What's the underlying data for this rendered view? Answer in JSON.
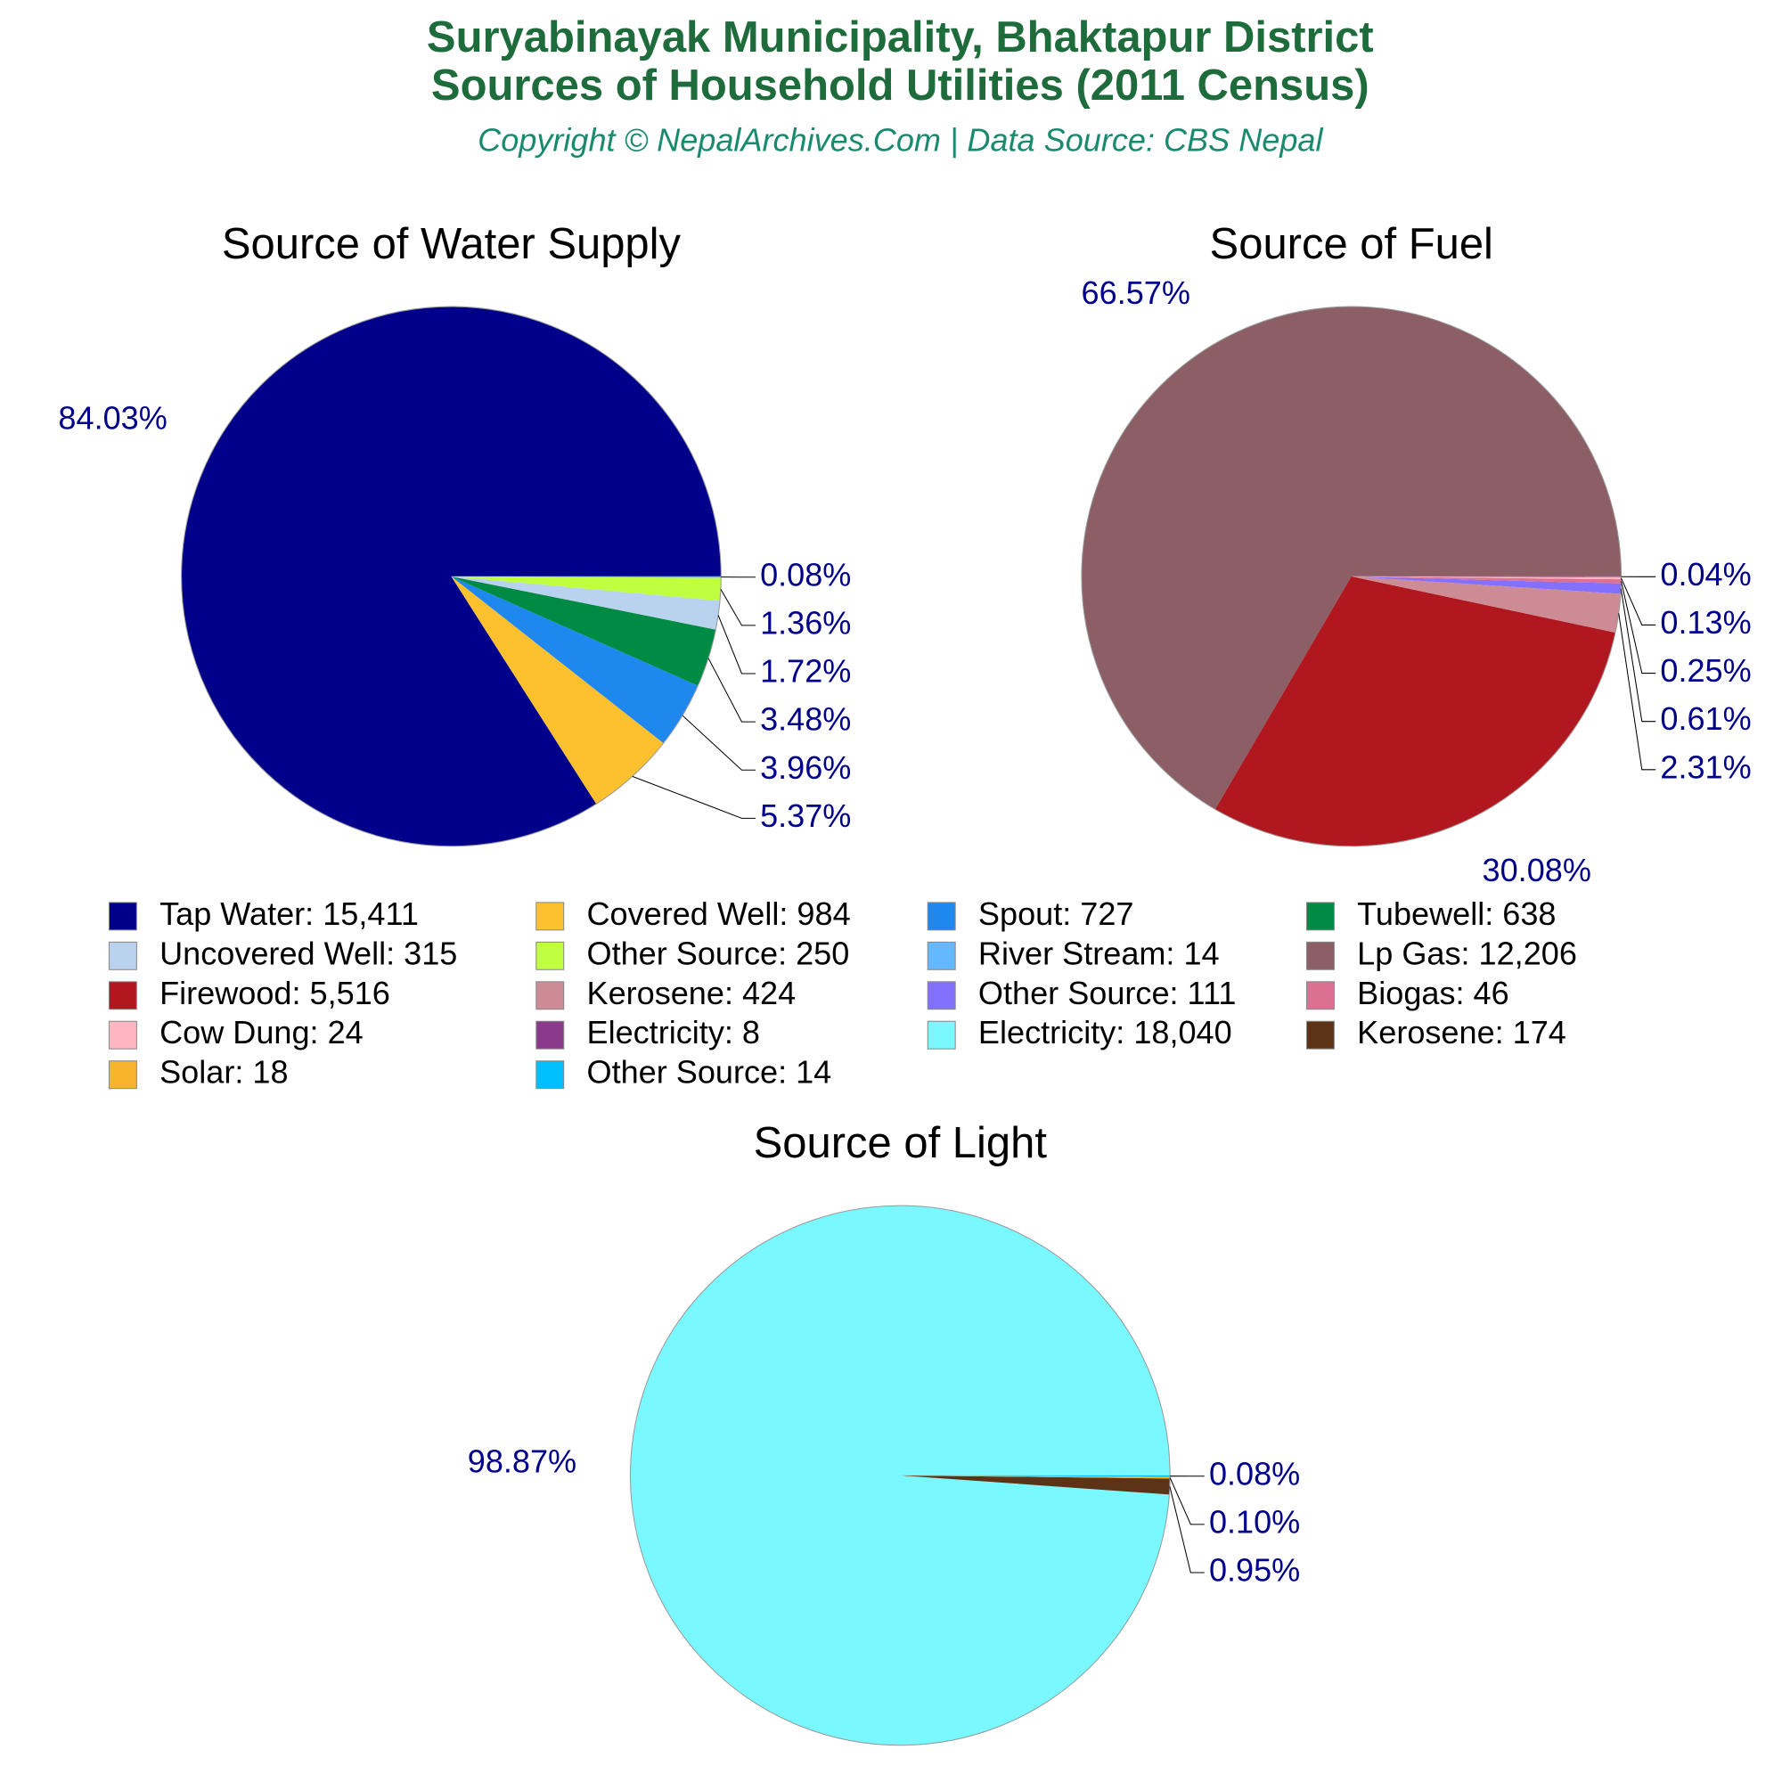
{
  "header": {
    "title": [
      "Suryabinayak Municipality, Bhaktapur District",
      "Sources of Household Utilities (2011 Census)"
    ],
    "subtitle": "Copyright © NepalArchives.Com | Data Source: CBS Nepal"
  },
  "chart_data": [
    {
      "type": "pie",
      "title": "Source of Water Supply",
      "categories": [
        "Tap Water: 15,411",
        "Covered Well: 984",
        "Spout: 727",
        "Tubewell: 638",
        "Uncovered Well: 315",
        "Other Source: 250",
        "River Stream: 14"
      ],
      "values": [
        84.03,
        5.37,
        3.96,
        3.48,
        1.72,
        1.36,
        0.08
      ],
      "value_labels": [
        "84.03%",
        "5.37%",
        "3.96%",
        "3.48%",
        "1.72%",
        "1.36%",
        "0.08%"
      ],
      "colors": [
        "#00008b",
        "#fdc02f",
        "#1e88ee",
        "#008b45",
        "#b9d3ee",
        "#c0ff3e",
        "#63b8ff"
      ]
    },
    {
      "type": "pie",
      "title": "Source of Fuel",
      "categories": [
        "Lp Gas: 12,206",
        "Firewood: 5,516",
        "Kerosene: 424",
        "Other Source: 111",
        "Biogas: 46",
        "Cow Dung: 24",
        "Electricity: 8"
      ],
      "values": [
        66.57,
        30.08,
        2.31,
        0.61,
        0.25,
        0.13,
        0.04
      ],
      "value_labels": [
        "66.57%",
        "30.08%",
        "2.31%",
        "0.61%",
        "0.25%",
        "0.13%",
        "0.04%"
      ],
      "colors": [
        "#8b5f65",
        "#b0171f",
        "#cd8c95",
        "#8470ff",
        "#db7093",
        "#ffb6c1",
        "#8b3a8b"
      ]
    },
    {
      "type": "pie",
      "title": "Source of Light",
      "categories": [
        "Electricity: 18,040",
        "Kerosene: 174",
        "Solar: 18",
        "Other Source: 14"
      ],
      "values": [
        98.87,
        0.95,
        0.1,
        0.08
      ],
      "value_labels": [
        "98.87%",
        "0.95%",
        "0.10%",
        "0.08%"
      ],
      "colors": [
        "#7af8ff",
        "#5c3317",
        "#f9b42d",
        "#00bfff"
      ]
    }
  ]
}
